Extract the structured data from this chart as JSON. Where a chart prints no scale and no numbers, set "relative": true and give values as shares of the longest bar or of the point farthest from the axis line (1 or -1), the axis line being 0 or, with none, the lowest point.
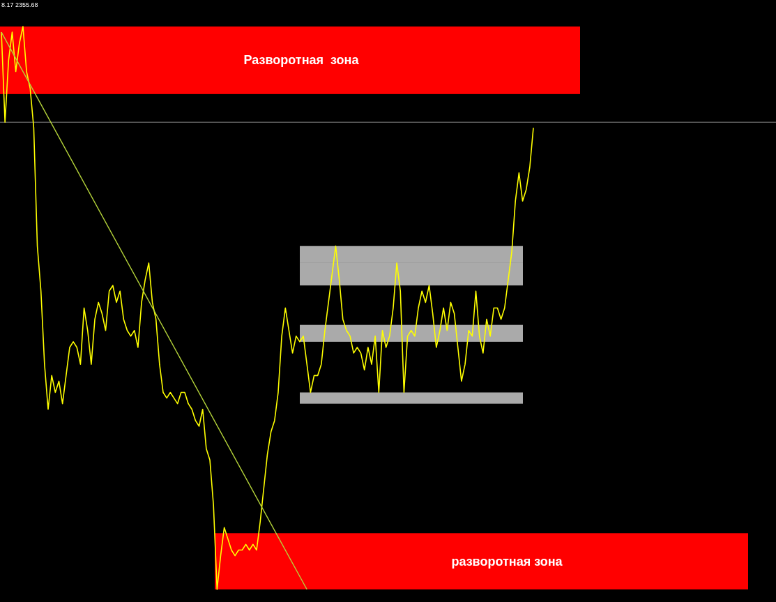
{
  "chart_data": {
    "type": "line",
    "relative": true,
    "categories": [
      null,
      null,
      null,
      null,
      null,
      null,
      null,
      null,
      null,
      null,
      null,
      null,
      null,
      null,
      null,
      null,
      null,
      null,
      null,
      null,
      null,
      null,
      null,
      null,
      null,
      null,
      null,
      null,
      null,
      null,
      null,
      null,
      null,
      null,
      null,
      null,
      null,
      null,
      null,
      null,
      null,
      null,
      null,
      null,
      null,
      null,
      null,
      null,
      null,
      null,
      null,
      null,
      null,
      null,
      null,
      null,
      null,
      null,
      null,
      null,
      null,
      null,
      null,
      null,
      null,
      null,
      null,
      null,
      null,
      null,
      null,
      null,
      null,
      null,
      null,
      null,
      null,
      null,
      null,
      null,
      null,
      null,
      null,
      null,
      null,
      null,
      null,
      null,
      null,
      null,
      null,
      null,
      null,
      null,
      null,
      null,
      null,
      null,
      null,
      null,
      null,
      null,
      null,
      null,
      null,
      null,
      null,
      null,
      null,
      null,
      null,
      null,
      null,
      null,
      null,
      null,
      null,
      null,
      null,
      null,
      null,
      null,
      null,
      null,
      null,
      null,
      null,
      null,
      null,
      null,
      null,
      null,
      null,
      null,
      null,
      null,
      null,
      null,
      null,
      null,
      null,
      null,
      null,
      null,
      null,
      null,
      null,
      null,
      null
    ],
    "series": [
      {
        "color": "#ffff00",
        "values": [
          0.99,
          0.83,
          0.94,
          0.99,
          0.92,
          0.97,
          1,
          0.92,
          0.89,
          0.82,
          0.61,
          0.53,
          0.4,
          0.32,
          0.38,
          0.35,
          0.37,
          0.33,
          0.38,
          0.43,
          0.44,
          0.43,
          0.4,
          0.5,
          0.46,
          0.4,
          0.48,
          0.51,
          0.49,
          0.46,
          0.53,
          0.54,
          0.51,
          0.53,
          0.48,
          0.46,
          0.45,
          0.46,
          0.43,
          0.51,
          0.55,
          0.58,
          0.51,
          0.48,
          0.4,
          0.35,
          0.34,
          0.35,
          0.34,
          0.33,
          0.35,
          0.35,
          0.33,
          0.32,
          0.3,
          0.29,
          0.32,
          0.25,
          0.23,
          0.15,
          0,
          0.06,
          0.11,
          0.09,
          0.07,
          0.06,
          0.07,
          0.07,
          0.08,
          0.07,
          0.08,
          0.07,
          0.12,
          0.18,
          0.24,
          0.28,
          0.3,
          0.35,
          0.45,
          0.5,
          0.46,
          0.42,
          0.45,
          0.44,
          0.45,
          0.4,
          0.35,
          0.38,
          0.38,
          0.4,
          0.46,
          0.51,
          0.56,
          0.61,
          0.55,
          0.48,
          0.46,
          0.45,
          0.42,
          0.43,
          0.42,
          0.39,
          0.43,
          0.4,
          0.45,
          0.35,
          0.46,
          0.43,
          0.45,
          0.5,
          0.58,
          0.53,
          0.35,
          0.45,
          0.46,
          0.45,
          0.5,
          0.53,
          0.51,
          0.54,
          0.49,
          0.43,
          0.46,
          0.5,
          0.46,
          0.51,
          0.49,
          0.43,
          0.37,
          0.4,
          0.46,
          0.45,
          0.53,
          0.45,
          0.42,
          0.48,
          0.45,
          0.5,
          0.5,
          0.48,
          0.5,
          0.55,
          0.6,
          0.69,
          0.74,
          0.69,
          0.71,
          0.75,
          0.82
        ]
      },
      {
        "color": "#b5d43a",
        "values": [
          0.99,
          null,
          null,
          null,
          null,
          null,
          null,
          null,
          null,
          null,
          null,
          null,
          null,
          null,
          null,
          null,
          null,
          null,
          null,
          null,
          null,
          null,
          null,
          null,
          null,
          null,
          null,
          null,
          null,
          null,
          null,
          null,
          null,
          null,
          null,
          null,
          null,
          null,
          null,
          null,
          null,
          null,
          null,
          null,
          null,
          null,
          null,
          null,
          null,
          null,
          null,
          null,
          null,
          null,
          null,
          null,
          null,
          null,
          null,
          null,
          null,
          null,
          null,
          null,
          null,
          null,
          null,
          null,
          null,
          null,
          null,
          null,
          null,
          null,
          null,
          null,
          null,
          null,
          null,
          null,
          null,
          null,
          null,
          null,
          null,
          0,
          null,
          null,
          null,
          null,
          null,
          null,
          null,
          null,
          null,
          null,
          null,
          null,
          null,
          null,
          null,
          null,
          null,
          null,
          null,
          null,
          null,
          null,
          null,
          null,
          null,
          null,
          null,
          null,
          null,
          null,
          null,
          null,
          null,
          null,
          null,
          null,
          null,
          null,
          null,
          null,
          null,
          null,
          null,
          null,
          null,
          null,
          null,
          null,
          null,
          null,
          null,
          null,
          null,
          null,
          null,
          null,
          null,
          null,
          null,
          null,
          null,
          null,
          null
        ]
      }
    ],
    "bands": [
      {
        "axis": "y",
        "from": 0.88,
        "to": 1,
        "label": "Разворотная  зона",
        "color": "#ff0000"
      },
      {
        "axis": "y",
        "from": 0,
        "to": 0.1,
        "label": "разворотная зона",
        "color": "#ff0000"
      },
      {
        "axis": "y",
        "from": 0.58,
        "to": 0.61,
        "color": "#aaaaaa"
      },
      {
        "axis": "y",
        "from": 0.54,
        "to": 0.58,
        "color": "#aaaaaa"
      },
      {
        "axis": "y",
        "from": 0.44,
        "to": 0.47,
        "color": "#aaaaaa"
      },
      {
        "axis": "y",
        "from": 0.33,
        "to": 0.35,
        "color": "#aaaaaa"
      }
    ],
    "ref_lines": [
      {
        "axis": "y",
        "value": 0.83,
        "color": "#888888"
      }
    ],
    "annotations": [
      "8.17 2355.68"
    ]
  }
}
